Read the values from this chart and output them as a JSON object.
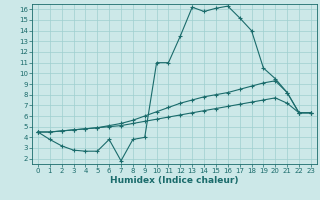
{
  "xlabel": "Humidex (Indice chaleur)",
  "xlim": [
    -0.5,
    23.5
  ],
  "ylim": [
    1.5,
    16.5
  ],
  "xticks": [
    0,
    1,
    2,
    3,
    4,
    5,
    6,
    7,
    8,
    9,
    10,
    11,
    12,
    13,
    14,
    15,
    16,
    17,
    18,
    19,
    20,
    21,
    22,
    23
  ],
  "yticks": [
    2,
    3,
    4,
    5,
    6,
    7,
    8,
    9,
    10,
    11,
    12,
    13,
    14,
    15,
    16
  ],
  "bg_color": "#cce8e8",
  "grid_color": "#9fcfcf",
  "line_color": "#1a6b6b",
  "line1_x": [
    0,
    1,
    2,
    3,
    4,
    5,
    6,
    7,
    8,
    9,
    10,
    11,
    12,
    13,
    14,
    15,
    16,
    17,
    18,
    19,
    20,
    21,
    22,
    23
  ],
  "line1_y": [
    4.5,
    3.8,
    3.2,
    2.8,
    2.7,
    2.7,
    3.8,
    1.8,
    3.8,
    4.0,
    11.0,
    11.0,
    13.5,
    16.2,
    15.8,
    16.1,
    16.3,
    15.2,
    14.0,
    10.5,
    9.5,
    8.2,
    6.3,
    6.3
  ],
  "line2_x": [
    0,
    1,
    2,
    3,
    4,
    5,
    6,
    7,
    8,
    9,
    10,
    11,
    12,
    13,
    14,
    15,
    16,
    17,
    18,
    19,
    20,
    21,
    22,
    23
  ],
  "line2_y": [
    4.5,
    4.5,
    4.6,
    4.7,
    4.8,
    4.9,
    5.1,
    5.3,
    5.6,
    6.0,
    6.4,
    6.8,
    7.2,
    7.5,
    7.8,
    8.0,
    8.2,
    8.5,
    8.8,
    9.1,
    9.3,
    8.2,
    6.3,
    6.3
  ],
  "line3_x": [
    0,
    1,
    2,
    3,
    4,
    5,
    6,
    7,
    8,
    9,
    10,
    11,
    12,
    13,
    14,
    15,
    16,
    17,
    18,
    19,
    20,
    21,
    22,
    23
  ],
  "line3_y": [
    4.5,
    4.5,
    4.6,
    4.7,
    4.8,
    4.9,
    5.0,
    5.1,
    5.3,
    5.5,
    5.7,
    5.9,
    6.1,
    6.3,
    6.5,
    6.7,
    6.9,
    7.1,
    7.3,
    7.5,
    7.7,
    7.2,
    6.3,
    6.3
  ],
  "tick_fontsize": 5.0,
  "xlabel_fontsize": 6.5,
  "lw": 0.8,
  "ms": 2.5
}
